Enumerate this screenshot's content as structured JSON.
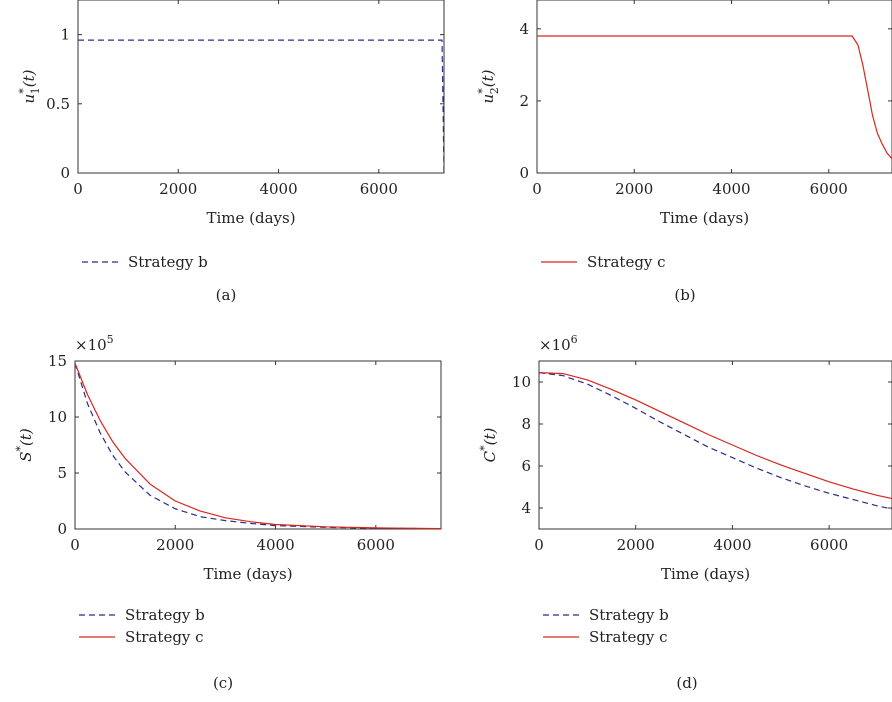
{
  "chart_data": [
    {
      "type": "line",
      "caption": "(a)",
      "xlabel": "Time (days)",
      "ylabel_base": "u",
      "ylabel_sub": "1",
      "ylabel_sup": "*",
      "ylabel_arg": "(t)",
      "multiplier_base": "",
      "multiplier_exp": "",
      "xlim": [
        0,
        7300
      ],
      "ylim": [
        0,
        1.25
      ],
      "xticks": [
        0,
        2000,
        4000,
        6000
      ],
      "xtick_labels": [
        "0",
        "2000",
        "4000",
        "6000"
      ],
      "yticks": [
        0,
        0.5,
        1
      ],
      "ytick_labels": [
        "0",
        "0.5",
        "1"
      ],
      "legend_position": "bottom",
      "series": [
        {
          "name": "Strategy b",
          "color": "#2b2b8c",
          "dash": "dashed",
          "points": [
            [
              0,
              0.96
            ],
            [
              2000,
              0.96
            ],
            [
              4000,
              0.96
            ],
            [
              6000,
              0.96
            ],
            [
              7260,
              0.96
            ],
            [
              7280,
              0.5
            ],
            [
              7300,
              0
            ]
          ]
        }
      ]
    },
    {
      "type": "line",
      "caption": "(b)",
      "xlabel": "Time (days)",
      "ylabel_base": "u",
      "ylabel_sub": "2",
      "ylabel_sup": "*",
      "ylabel_arg": "(t)",
      "multiplier_base": "",
      "multiplier_exp": "",
      "xlim": [
        0,
        7300
      ],
      "ylim": [
        0,
        4.8
      ],
      "xticks": [
        0,
        2000,
        4000,
        6000
      ],
      "xtick_labels": [
        "0",
        "2000",
        "4000",
        "6000"
      ],
      "yticks": [
        0,
        2,
        4
      ],
      "ytick_labels": [
        "0",
        "2",
        "4"
      ],
      "legend_position": "bottom",
      "series": [
        {
          "name": "Strategy c",
          "color": "#d7261e",
          "dash": "solid",
          "points": [
            [
              0,
              3.8
            ],
            [
              2000,
              3.8
            ],
            [
              4000,
              3.8
            ],
            [
              6000,
              3.8
            ],
            [
              6480,
              3.8
            ],
            [
              6600,
              3.55
            ],
            [
              6700,
              3.0
            ],
            [
              6800,
              2.3
            ],
            [
              6900,
              1.6
            ],
            [
              7000,
              1.1
            ],
            [
              7100,
              0.8
            ],
            [
              7200,
              0.55
            ],
            [
              7300,
              0.4
            ]
          ]
        }
      ]
    },
    {
      "type": "line",
      "caption": "(c)",
      "xlabel": "Time (days)",
      "ylabel_base": "S",
      "ylabel_sub": "",
      "ylabel_sup": "*",
      "ylabel_arg": "(t)",
      "multiplier_base": "×10",
      "multiplier_exp": "5",
      "xlim": [
        0,
        7300
      ],
      "ylim": [
        0,
        15
      ],
      "xticks": [
        0,
        2000,
        4000,
        6000
      ],
      "xtick_labels": [
        "0",
        "2000",
        "4000",
        "6000"
      ],
      "yticks": [
        0,
        5,
        10,
        15
      ],
      "ytick_labels": [
        "0",
        "5",
        "10",
        "15"
      ],
      "legend_position": "bottom",
      "series": [
        {
          "name": "Strategy b",
          "color": "#2b2b8c",
          "dash": "dashed",
          "points": [
            [
              0,
              14.8
            ],
            [
              250,
              11.2
            ],
            [
              500,
              8.6
            ],
            [
              750,
              6.6
            ],
            [
              1000,
              5.1
            ],
            [
              1500,
              3.0
            ],
            [
              2000,
              1.8
            ],
            [
              2500,
              1.1
            ],
            [
              3000,
              0.75
            ],
            [
              3500,
              0.5
            ],
            [
              4000,
              0.3
            ],
            [
              5000,
              0.15
            ],
            [
              6000,
              0.07
            ],
            [
              7300,
              0.03
            ]
          ]
        },
        {
          "name": "Strategy c",
          "color": "#d7261e",
          "dash": "solid",
          "points": [
            [
              0,
              14.8
            ],
            [
              250,
              12.0
            ],
            [
              500,
              9.7
            ],
            [
              750,
              7.8
            ],
            [
              1000,
              6.3
            ],
            [
              1500,
              4.0
            ],
            [
              2000,
              2.5
            ],
            [
              2500,
              1.6
            ],
            [
              3000,
              1.0
            ],
            [
              3500,
              0.65
            ],
            [
              4000,
              0.4
            ],
            [
              5000,
              0.2
            ],
            [
              6000,
              0.1
            ],
            [
              7300,
              0.04
            ]
          ]
        }
      ]
    },
    {
      "type": "line",
      "caption": "(d)",
      "xlabel": "Time (days)",
      "ylabel_base": "C",
      "ylabel_sub": "",
      "ylabel_sup": "*",
      "ylabel_arg": "(t)",
      "multiplier_base": "×10",
      "multiplier_exp": "6",
      "xlim": [
        0,
        7300
      ],
      "ylim": [
        3,
        11
      ],
      "xticks": [
        0,
        2000,
        4000,
        6000
      ],
      "xtick_labels": [
        "0",
        "2000",
        "4000",
        "6000"
      ],
      "yticks": [
        4,
        6,
        8,
        10
      ],
      "ytick_labels": [
        "4",
        "6",
        "8",
        "10"
      ],
      "legend_position": "bottom",
      "series": [
        {
          "name": "Strategy b",
          "color": "#2b2b8c",
          "dash": "dashed",
          "points": [
            [
              0,
              10.45
            ],
            [
              500,
              10.3
            ],
            [
              1000,
              9.9
            ],
            [
              1500,
              9.35
            ],
            [
              2000,
              8.75
            ],
            [
              2500,
              8.1
            ],
            [
              3000,
              7.5
            ],
            [
              3500,
              6.9
            ],
            [
              4000,
              6.4
            ],
            [
              4500,
              5.9
            ],
            [
              5000,
              5.45
            ],
            [
              5500,
              5.05
            ],
            [
              6000,
              4.7
            ],
            [
              6500,
              4.4
            ],
            [
              7000,
              4.1
            ],
            [
              7300,
              3.95
            ]
          ]
        },
        {
          "name": "Strategy c",
          "color": "#d7261e",
          "dash": "solid",
          "points": [
            [
              0,
              10.45
            ],
            [
              500,
              10.4
            ],
            [
              1000,
              10.1
            ],
            [
              1500,
              9.65
            ],
            [
              2000,
              9.15
            ],
            [
              2500,
              8.6
            ],
            [
              3000,
              8.05
            ],
            [
              3500,
              7.5
            ],
            [
              4000,
              7.0
            ],
            [
              4500,
              6.5
            ],
            [
              5000,
              6.05
            ],
            [
              5500,
              5.65
            ],
            [
              6000,
              5.25
            ],
            [
              6500,
              4.9
            ],
            [
              7000,
              4.6
            ],
            [
              7300,
              4.45
            ]
          ]
        }
      ]
    }
  ]
}
